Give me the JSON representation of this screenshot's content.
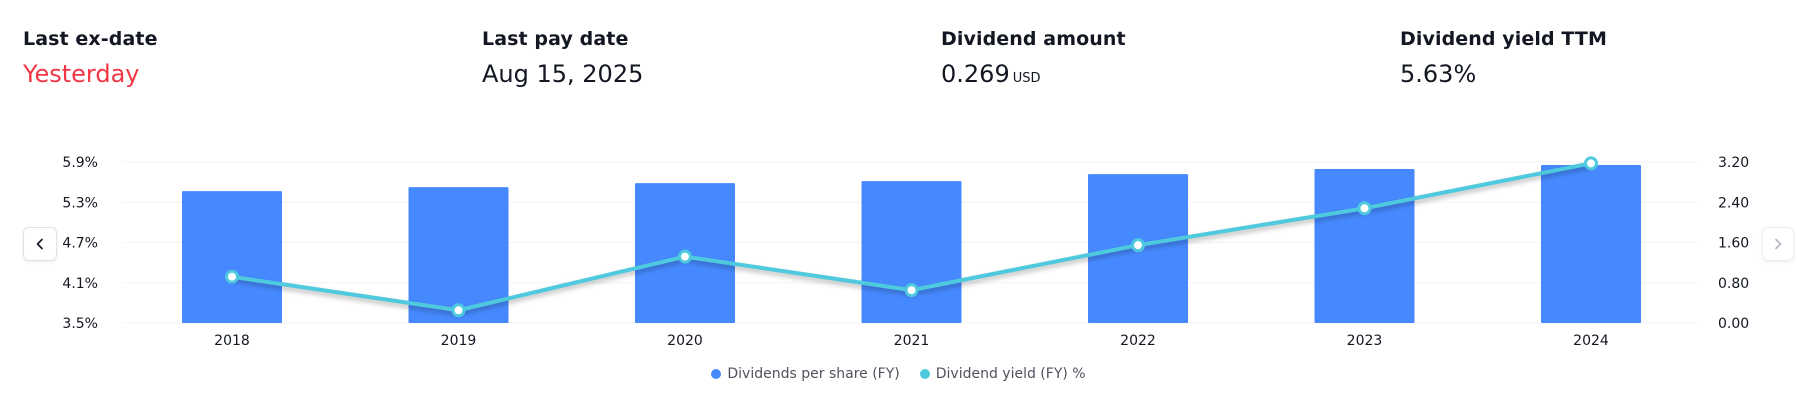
{
  "stats": [
    {
      "label": "Last ex-date",
      "value": "Yesterday",
      "unit": "",
      "color": "#f23645"
    },
    {
      "label": "Last pay date",
      "value": "Aug 15, 2025",
      "unit": "",
      "color": "#131722"
    },
    {
      "label": "Dividend amount",
      "value": "0.269",
      "unit": "USD",
      "color": "#131722"
    },
    {
      "label": "Dividend yield TTM",
      "value": "5.63%",
      "unit": "",
      "color": "#131722"
    }
  ],
  "chart_data": {
    "type": "bar",
    "categories": [
      "2018",
      "2019",
      "2020",
      "2021",
      "2022",
      "2023",
      "2024"
    ],
    "series": [
      {
        "name": "Dividends per share (FY)",
        "type": "bar",
        "axis": "right",
        "values": [
          2.62,
          2.7,
          2.78,
          2.82,
          2.96,
          3.06,
          3.14
        ],
        "color": "#4689ff"
      },
      {
        "name": "Dividend yield (FY) %",
        "type": "line",
        "axis": "left",
        "values": [
          4.19,
          3.69,
          4.49,
          3.99,
          4.66,
          5.21,
          5.88
        ],
        "color": "#4ec9de"
      }
    ],
    "left_axis": {
      "ticks": [
        "5.9%",
        "5.3%",
        "4.7%",
        "4.1%",
        "3.5%"
      ],
      "range": [
        3.5,
        5.9
      ]
    },
    "right_axis": {
      "ticks": [
        "3.20",
        "2.40",
        "1.60",
        "0.80",
        "0.00"
      ],
      "range": [
        0,
        3.2
      ]
    },
    "grid": true,
    "legend_position": "bottom-center"
  }
}
